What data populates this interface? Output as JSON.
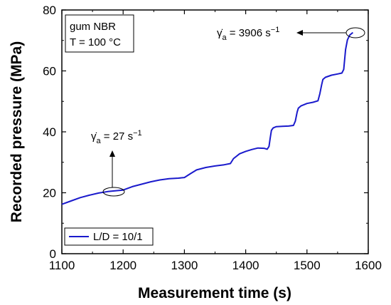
{
  "chart_data": {
    "type": "line",
    "xlabel": "Measurement time (s)",
    "ylabel": "Recorded pressure (MPa)",
    "xlim": [
      1100,
      1600
    ],
    "ylim": [
      0,
      80
    ],
    "xticks": [
      "1100",
      "1200",
      "1300",
      "1400",
      "1500",
      "1600"
    ],
    "yticks": [
      "0",
      "20",
      "40",
      "60",
      "80"
    ],
    "grid": false,
    "legend_position": "bottom-left",
    "info_box": [
      "gum NBR",
      "T = 100 °C"
    ],
    "series": [
      {
        "name": "L/D = 10/1",
        "color": "#1a1acc",
        "x": [
          1100,
          1115,
          1130,
          1145,
          1160,
          1175,
          1190,
          1200,
          1215,
          1230,
          1245,
          1260,
          1275,
          1290,
          1300,
          1310,
          1320,
          1335,
          1350,
          1365,
          1375,
          1380,
          1390,
          1400,
          1410,
          1420,
          1430,
          1435,
          1438,
          1440,
          1442,
          1445,
          1450,
          1460,
          1470,
          1478,
          1481,
          1484,
          1486,
          1490,
          1500,
          1510,
          1518,
          1521,
          1524,
          1526,
          1530,
          1540,
          1550,
          1557,
          1560,
          1563,
          1566,
          1570,
          1575
        ],
        "values": [
          16.2,
          17.3,
          18.4,
          19.2,
          19.9,
          20.4,
          20.7,
          20.9,
          22.0,
          22.8,
          23.6,
          24.2,
          24.6,
          24.8,
          25.0,
          26.3,
          27.5,
          28.3,
          28.8,
          29.2,
          29.6,
          31.2,
          32.8,
          33.6,
          34.2,
          34.7,
          34.6,
          34.3,
          35.2,
          38.0,
          40.5,
          41.3,
          41.7,
          41.8,
          41.9,
          42.1,
          43.5,
          46.5,
          47.8,
          48.5,
          49.3,
          49.7,
          50.2,
          52.5,
          55.5,
          57.2,
          57.9,
          58.6,
          59.0,
          59.3,
          60.5,
          67.0,
          70.2,
          71.8,
          72.6
        ]
      }
    ],
    "annotations": [
      {
        "symbol": "γ̇",
        "subscript": "a",
        "text": " = 27 s",
        "superscript": "−1",
        "points_to": {
          "x": 1192,
          "y": 20.8
        }
      },
      {
        "symbol": "γ̇",
        "subscript": "a",
        "text": " = 3906 s",
        "superscript": "−1",
        "points_to": {
          "x": 1573,
          "y": 72.6
        }
      }
    ]
  }
}
